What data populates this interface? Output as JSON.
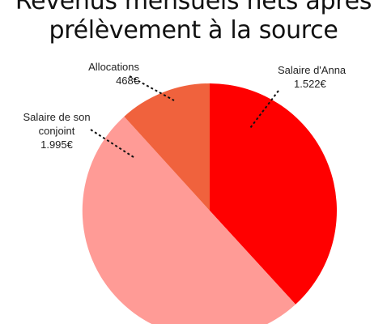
{
  "chart_data": {
    "type": "pie",
    "title_lines": [
      "Revenus mensuels nets après",
      "prélèvement à la source"
    ],
    "slices": [
      {
        "label_lines": [
          "Salaire d'Anna"
        ],
        "value_text": "1.522€",
        "value": 1522,
        "color": "#ff0000"
      },
      {
        "label_lines": [
          "Salaire de son",
          "conjoint"
        ],
        "value_text": "1.995€",
        "value": 1995,
        "color": "#ff9b96"
      },
      {
        "label_lines": [
          "Allocations"
        ],
        "value_text": "468€",
        "value": 468,
        "color": "#f0623d"
      }
    ]
  }
}
